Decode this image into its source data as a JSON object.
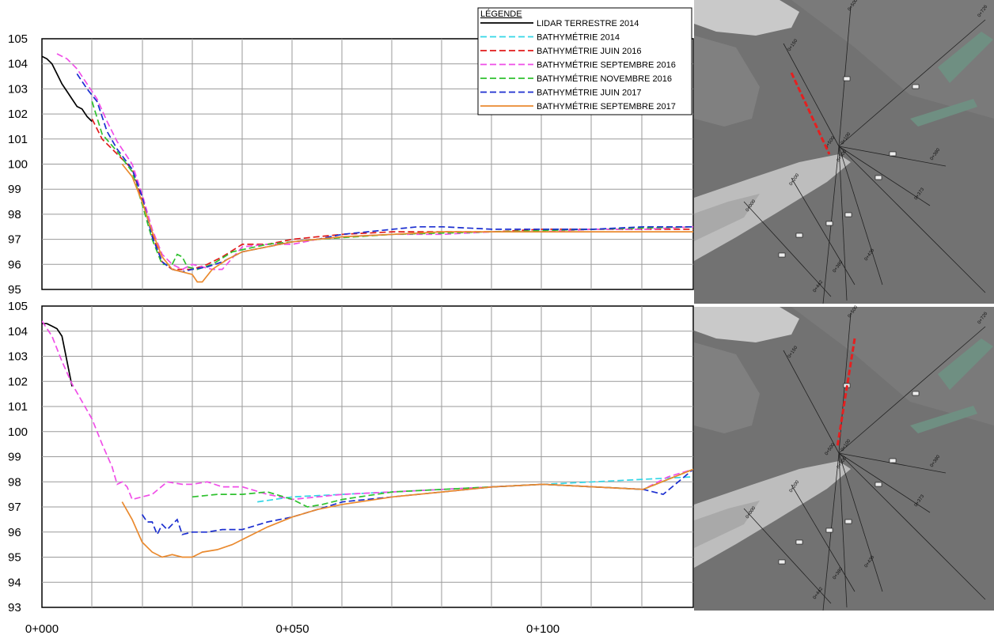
{
  "legend": {
    "title": "LÉGENDE",
    "entries": [
      {
        "label": "LIDAR TERRESTRE 2014",
        "color": "#000000",
        "dash": "solid"
      },
      {
        "label": "BATHYMÉTRIE 2014",
        "color": "#33d6e6",
        "dash": "dashed"
      },
      {
        "label": "BATHYMÉTRIE JUIN 2016",
        "color": "#e01b1b",
        "dash": "dashed"
      },
      {
        "label": "BATHYMÉTRIE SEPTEMBRE 2016",
        "color": "#f04ee8",
        "dash": "dashed"
      },
      {
        "label": "BATHYMÉTRIE NOVEMBRE 2016",
        "color": "#2fc12f",
        "dash": "dashed"
      },
      {
        "label": "BATHYMÉTRIE JUIN 2017",
        "color": "#1c2fd0",
        "dash": "dashed"
      },
      {
        "label": "BATHYMÉTRIE SEPTEMBRE 2017",
        "color": "#ea8a2f",
        "dash": "solid"
      }
    ]
  },
  "chart_data": [
    {
      "type": "line",
      "title": "",
      "xlabel": "",
      "ylabel": "",
      "xlim": [
        0,
        130
      ],
      "ylim": [
        95,
        105
      ],
      "yticks": [
        95,
        96,
        97,
        98,
        99,
        100,
        101,
        102,
        103,
        104,
        105
      ],
      "grid": true,
      "legend": "top-right",
      "series": [
        {
          "name": "LIDAR TERRESTRE 2014",
          "x": [
            0,
            1,
            2,
            3,
            4,
            5,
            6,
            7,
            8,
            9,
            10
          ],
          "y": [
            104.3,
            104.2,
            104.0,
            103.6,
            103.2,
            102.9,
            102.6,
            102.3,
            102.2,
            101.9,
            101.7
          ]
        },
        {
          "name": "BATHYMÉTRIE JUIN 2016",
          "x": [
            10,
            12,
            15,
            18,
            20,
            22,
            24,
            26,
            28,
            30,
            33,
            36,
            40,
            45,
            50,
            55,
            60,
            70,
            80,
            90,
            100,
            110,
            120,
            130
          ],
          "y": [
            101.8,
            101.0,
            100.4,
            99.8,
            98.6,
            97.2,
            96.1,
            95.8,
            95.8,
            95.8,
            96.0,
            96.3,
            96.8,
            96.8,
            97.0,
            97.1,
            97.2,
            97.3,
            97.3,
            97.3,
            97.4,
            97.4,
            97.4,
            97.4
          ]
        },
        {
          "name": "BATHYMÉTRIE SEPTEMBRE 2016",
          "x": [
            3,
            5,
            7,
            9,
            11,
            13,
            15,
            18,
            20,
            22,
            24,
            26,
            28,
            30,
            32,
            34,
            36,
            40,
            45,
            50,
            55,
            60,
            70,
            80,
            90,
            100,
            110,
            120,
            130
          ],
          "y": [
            104.4,
            104.2,
            103.8,
            103.2,
            102.6,
            101.7,
            100.9,
            100.0,
            98.8,
            97.4,
            96.4,
            96.0,
            95.8,
            96.0,
            95.9,
            95.8,
            95.8,
            96.7,
            96.8,
            96.8,
            97.0,
            97.1,
            97.2,
            97.2,
            97.3,
            97.3,
            97.4,
            97.4,
            97.5
          ]
        },
        {
          "name": "BATHYMÉTRIE NOVEMBRE 2016",
          "x": [
            10,
            12,
            15,
            18,
            20,
            22,
            24,
            26,
            27,
            28,
            29,
            31,
            34,
            38,
            45,
            55,
            70,
            90,
            110,
            130
          ],
          "y": [
            102.5,
            101.2,
            100.5,
            99.7,
            98.4,
            97.0,
            96.0,
            96.0,
            96.4,
            96.3,
            95.9,
            95.8,
            96.0,
            96.5,
            96.8,
            97.0,
            97.2,
            97.3,
            97.4,
            97.5
          ]
        },
        {
          "name": "BATHYMÉTRIE JUIN 2017",
          "x": [
            7,
            9,
            11,
            13,
            15,
            18,
            20,
            22,
            24,
            26,
            28,
            30,
            33,
            36,
            40,
            45,
            50,
            55,
            60,
            65,
            70,
            75,
            80,
            90,
            100,
            110,
            120,
            130
          ],
          "y": [
            103.6,
            103.0,
            102.5,
            101.3,
            100.6,
            99.8,
            98.7,
            97.1,
            96.1,
            95.8,
            95.7,
            95.8,
            95.9,
            96.1,
            96.5,
            96.7,
            96.9,
            97.0,
            97.2,
            97.3,
            97.4,
            97.5,
            97.5,
            97.4,
            97.4,
            97.4,
            97.5,
            97.5
          ]
        },
        {
          "name": "BATHYMÉTRIE SEPTEMBRE 2017",
          "x": [
            16,
            18,
            20,
            22,
            24,
            26,
            28,
            30,
            31,
            32,
            34,
            37,
            40,
            45,
            50,
            55,
            60,
            70,
            80,
            90,
            100,
            110,
            120,
            130
          ],
          "y": [
            100.0,
            99.5,
            98.5,
            97.3,
            96.3,
            95.8,
            95.7,
            95.6,
            95.3,
            95.3,
            95.8,
            96.2,
            96.5,
            96.7,
            96.9,
            97.0,
            97.1,
            97.2,
            97.3,
            97.3,
            97.3,
            97.3,
            97.3,
            97.3
          ]
        }
      ]
    },
    {
      "type": "line",
      "title": "",
      "xlabel": "",
      "ylabel": "",
      "xlim": [
        0,
        130
      ],
      "ylim": [
        93,
        105
      ],
      "yticks": [
        93,
        94,
        95,
        96,
        97,
        98,
        99,
        100,
        101,
        102,
        103,
        104,
        105
      ],
      "xticks": [
        0,
        50,
        100
      ],
      "xticklabels": [
        "0+000",
        "0+050",
        "0+100"
      ],
      "grid": true,
      "series": [
        {
          "name": "LIDAR TERRESTRE 2014",
          "x": [
            0,
            1,
            2,
            3,
            4,
            5,
            6
          ],
          "y": [
            104.3,
            104.3,
            104.2,
            104.1,
            103.8,
            102.8,
            101.8
          ]
        },
        {
          "name": "BATHYMÉTRIE 2014",
          "x": [
            43,
            50,
            60,
            70,
            80,
            90,
            100,
            110,
            120,
            130
          ],
          "y": [
            97.2,
            97.4,
            97.5,
            97.6,
            97.7,
            97.8,
            97.9,
            98.0,
            98.1,
            98.2
          ]
        },
        {
          "name": "BATHYMÉTRIE SEPTEMBRE 2016",
          "x": [
            0,
            2,
            4,
            6,
            8,
            10,
            12,
            14,
            15,
            16,
            17,
            18,
            20,
            22,
            25,
            28,
            30,
            33,
            36,
            40,
            45,
            50,
            55,
            60,
            70,
            80,
            90,
            100,
            110,
            120,
            125,
            130
          ],
          "y": [
            104.4,
            103.8,
            102.8,
            101.9,
            101.2,
            100.5,
            99.5,
            98.6,
            97.9,
            98.0,
            97.8,
            97.3,
            97.4,
            97.5,
            98.0,
            97.9,
            97.9,
            98.0,
            97.8,
            97.8,
            97.5,
            97.3,
            97.4,
            97.5,
            97.6,
            97.7,
            97.8,
            97.9,
            97.8,
            97.7,
            98.2,
            98.5
          ]
        },
        {
          "name": "BATHYMÉTRIE NOVEMBRE 2016",
          "x": [
            30,
            35,
            40,
            45,
            50,
            53,
            56,
            60,
            70,
            80,
            90,
            100,
            110,
            120,
            125,
            130
          ],
          "y": [
            97.4,
            97.5,
            97.5,
            97.6,
            97.3,
            97.0,
            97.1,
            97.3,
            97.6,
            97.7,
            97.8,
            97.9,
            97.8,
            97.7,
            98.1,
            98.5
          ]
        },
        {
          "name": "BATHYMÉTRIE JUIN 2017",
          "x": [
            20,
            21,
            22,
            23,
            24,
            25,
            26,
            27,
            28,
            30,
            33,
            36,
            40,
            45,
            50,
            55,
            60,
            70,
            80,
            90,
            100,
            110,
            120,
            124,
            127,
            130
          ],
          "y": [
            96.7,
            96.4,
            96.4,
            95.9,
            96.3,
            96.1,
            96.3,
            96.5,
            95.9,
            96.0,
            96.0,
            96.1,
            96.1,
            96.4,
            96.6,
            96.9,
            97.2,
            97.4,
            97.6,
            97.8,
            97.9,
            97.8,
            97.7,
            97.5,
            98.0,
            98.5
          ]
        },
        {
          "name": "BATHYMÉTRIE SEPTEMBRE 2017",
          "x": [
            16,
            18,
            20,
            22,
            24,
            26,
            28,
            30,
            32,
            35,
            38,
            40,
            45,
            50,
            55,
            60,
            70,
            80,
            90,
            100,
            110,
            120,
            130
          ],
          "y": [
            97.2,
            96.5,
            95.6,
            95.2,
            95.0,
            95.1,
            95.0,
            95.0,
            95.2,
            95.3,
            95.5,
            95.7,
            96.2,
            96.6,
            96.9,
            97.1,
            97.4,
            97.6,
            97.8,
            97.9,
            97.8,
            97.7,
            98.5
          ]
        }
      ]
    }
  ],
  "maps": [
    {
      "highlight_color": "#e52020",
      "labels": [
        "0+726",
        "0+500",
        "0+380",
        "0+373",
        "0+436",
        "0+380",
        "0+442",
        "0+500",
        "0+500",
        "0+000",
        "0+150",
        "0+100",
        "0+200"
      ]
    },
    {
      "highlight_color": "#e52020",
      "labels": [
        "0+726",
        "0+500",
        "0+380",
        "0+373",
        "0+436",
        "0+380",
        "0+442",
        "0+500",
        "0+500",
        "0+000",
        "0+150",
        "0+100",
        "0+200"
      ]
    }
  ]
}
